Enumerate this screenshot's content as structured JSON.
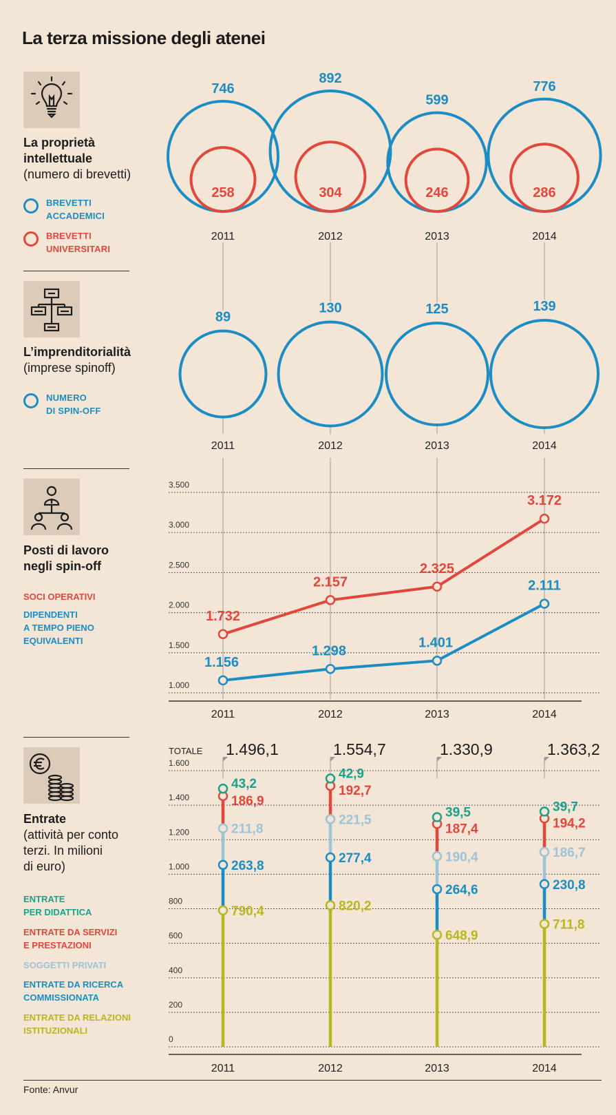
{
  "title": "La terza missione degli atenei",
  "source": "Fonte: Anvur",
  "colors": {
    "blue": "#1b8dc4",
    "red": "#e1473c",
    "light_blue": "#9cc3d8",
    "green": "#17a28a",
    "olive": "#b5b81f",
    "axis": "#333333",
    "grid": "#333333"
  },
  "sections": {
    "patents": {
      "icon": "lightbulb-icon",
      "title": "La proprietà intellettuale",
      "title_line1": "La proprietà",
      "title_line2": "intellettuale",
      "subtitle": "(numero di brevetti)",
      "legend": [
        {
          "line1": "BREVETTI",
          "line2": "ACCADEMICI",
          "color": "#1b8dc4"
        },
        {
          "line1": "BREVETTI",
          "line2": "UNIVERSITARI",
          "color": "#e1473c"
        }
      ]
    },
    "spinoff": {
      "icon": "org-chart-icon",
      "title": "L’imprenditorialità",
      "subtitle": "(imprese spinoff)",
      "legend": [
        {
          "line1": "NUMERO",
          "line2": "DI SPIN-OFF",
          "color": "#1b8dc4"
        }
      ]
    },
    "jobs": {
      "icon": "people-icon",
      "title_line1": "Posti di lavoro",
      "title_line2": "negli spin-off",
      "legend": [
        {
          "lines": [
            "SOCI OPERATIVI"
          ],
          "color": "#e1473c"
        },
        {
          "lines": [
            "DIPENDENTI",
            "A TEMPO PIENO",
            "EQUIVALENTI"
          ],
          "color": "#1b8dc4"
        }
      ]
    },
    "revenue": {
      "icon": "euro-coins-icon",
      "title": "Entrate",
      "subtitle_lines": [
        "(attività per conto",
        "terzi. In milioni",
        "di euro)"
      ],
      "legend": [
        {
          "lines": [
            "ENTRATE",
            "PER DIDATTICA"
          ],
          "color": "#17a28a"
        },
        {
          "lines": [
            "ENTRATE DA SERVIZI",
            "E PRESTAZIONI"
          ],
          "color": "#e1473c"
        },
        {
          "lines": [
            "SOGGETTI PRIVATI"
          ],
          "color": "#9cc3d8"
        },
        {
          "lines": [
            "ENTRATE DA RICERCA",
            "COMMISSIONATA"
          ],
          "color": "#1b8dc4"
        },
        {
          "lines": [
            "ENTRATE DA RELAZIONI",
            "ISTITUZIONALI"
          ],
          "color": "#b5b81f"
        }
      ]
    }
  },
  "chart_data": [
    {
      "type": "bubble",
      "title": "La proprietà intellettuale (numero di brevetti)",
      "categories": [
        "2011",
        "2012",
        "2013",
        "2014"
      ],
      "series": [
        {
          "name": "BREVETTI ACCADEMICI",
          "values": [
            746,
            892,
            599,
            776
          ],
          "labels": [
            "746",
            "892",
            "599",
            "776"
          ]
        },
        {
          "name": "BREVETTI UNIVERSITARI",
          "values": [
            258,
            304,
            246,
            286
          ],
          "labels": [
            "258",
            "304",
            "246",
            "286"
          ]
        }
      ]
    },
    {
      "type": "bubble",
      "title": "L’imprenditorialità (imprese spinoff)",
      "categories": [
        "2011",
        "2012",
        "2013",
        "2014"
      ],
      "series": [
        {
          "name": "NUMERO DI SPIN-OFF",
          "values": [
            89,
            130,
            125,
            139
          ],
          "labels": [
            "89",
            "130",
            "125",
            "139"
          ]
        }
      ]
    },
    {
      "type": "line",
      "title": "Posti di lavoro negli spin-off",
      "categories": [
        "2011",
        "2012",
        "2013",
        "2014"
      ],
      "ylim": [
        1000,
        3500
      ],
      "yticks": [
        1000,
        1500,
        2000,
        2500,
        3000,
        3500
      ],
      "ytick_labels": [
        "1.000",
        "1.500",
        "2.000",
        "2.500",
        "3.000",
        "3.500"
      ],
      "grid": true,
      "series": [
        {
          "name": "SOCI OPERATIVI",
          "values": [
            1732,
            2157,
            2325,
            3172
          ],
          "labels": [
            "1.732",
            "2.157",
            "2.325",
            "3.172"
          ]
        },
        {
          "name": "DIPENDENTI A TEMPO PIENO EQUIVALENTI",
          "values": [
            1156,
            1298,
            1401,
            2111
          ],
          "labels": [
            "1.156",
            "1.298",
            "1.401",
            "2.111"
          ]
        }
      ]
    },
    {
      "type": "stacked-line",
      "title": "Entrate (attività per conto terzi. In milioni di euro)",
      "categories": [
        "2011",
        "2012",
        "2013",
        "2014"
      ],
      "ylim": [
        0,
        1600
      ],
      "yticks": [
        0,
        200,
        400,
        600,
        800,
        1000,
        1200,
        1400,
        1600
      ],
      "ytick_labels": [
        "0",
        "200",
        "400",
        "600",
        "800",
        "1.000",
        "1.200",
        "1.400",
        "1.600"
      ],
      "grid": true,
      "total_label": "TOTALE",
      "totals": [
        1496.1,
        1554.7,
        1330.9,
        1363.2
      ],
      "total_labels": [
        "1.496,1",
        "1.554,7",
        "1.330,9",
        "1.363,2"
      ],
      "series": [
        {
          "name": "ENTRATE DA RELAZIONI ISTITUZIONALI",
          "values": [
            790.4,
            820.2,
            648.9,
            711.8
          ],
          "labels": [
            "790,4",
            "820,2",
            "648,9",
            "711,8"
          ]
        },
        {
          "name": "ENTRATE DA RICERCA COMMISSIONATA",
          "values": [
            263.8,
            277.4,
            264.6,
            230.8
          ],
          "labels": [
            "263,8",
            "277,4",
            "264,6",
            "230,8"
          ]
        },
        {
          "name": "SOGGETTI PRIVATI",
          "values": [
            211.8,
            221.5,
            190.4,
            186.7
          ],
          "labels": [
            "211,8",
            "221,5",
            "190,4",
            "186,7"
          ]
        },
        {
          "name": "ENTRATE DA SERVIZI E PRESTAZIONI",
          "values": [
            186.9,
            192.7,
            187.4,
            194.2
          ],
          "labels": [
            "186,9",
            "192,7",
            "187,4",
            "194,2"
          ]
        },
        {
          "name": "ENTRATE PER DIDATTICA",
          "values": [
            43.2,
            42.9,
            39.5,
            39.7
          ],
          "labels": [
            "43,2",
            "42,9",
            "39,5",
            "39,7"
          ]
        }
      ]
    }
  ]
}
